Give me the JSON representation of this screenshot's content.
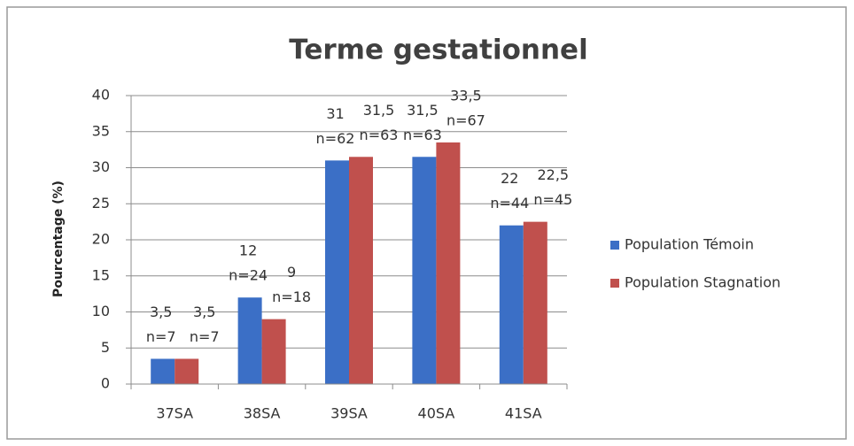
{
  "chart_data": {
    "type": "bar",
    "title": "Terme gestationnel",
    "y_label": "Pourcentage (%)",
    "categories": [
      "37SA",
      "38SA",
      "39SA",
      "40SA",
      "41SA"
    ],
    "series": [
      {
        "name": "Population Témoin",
        "color": "#3b6fc6",
        "values": [
          3.5,
          12,
          31,
          31.5,
          22
        ],
        "value_labels": [
          "3,5",
          "12",
          "31",
          "31,5",
          "22"
        ],
        "n_labels": [
          "n=7",
          "n=24",
          "n=62",
          "n=63",
          "n=44"
        ]
      },
      {
        "name": "Population Stagnation",
        "color": "#c0504d",
        "values": [
          3.5,
          9,
          31.5,
          33.5,
          22.5
        ],
        "value_labels": [
          "3,5",
          "9",
          "31,5",
          "33,5",
          "22,5"
        ],
        "n_labels": [
          "n=7",
          "n=18",
          "n=63",
          "n=67",
          "n=45"
        ]
      }
    ],
    "ylim": [
      0,
      40
    ],
    "yticks": [
      0,
      5,
      10,
      15,
      20,
      25,
      30,
      35,
      40
    ],
    "grid": true,
    "legend": "right"
  }
}
